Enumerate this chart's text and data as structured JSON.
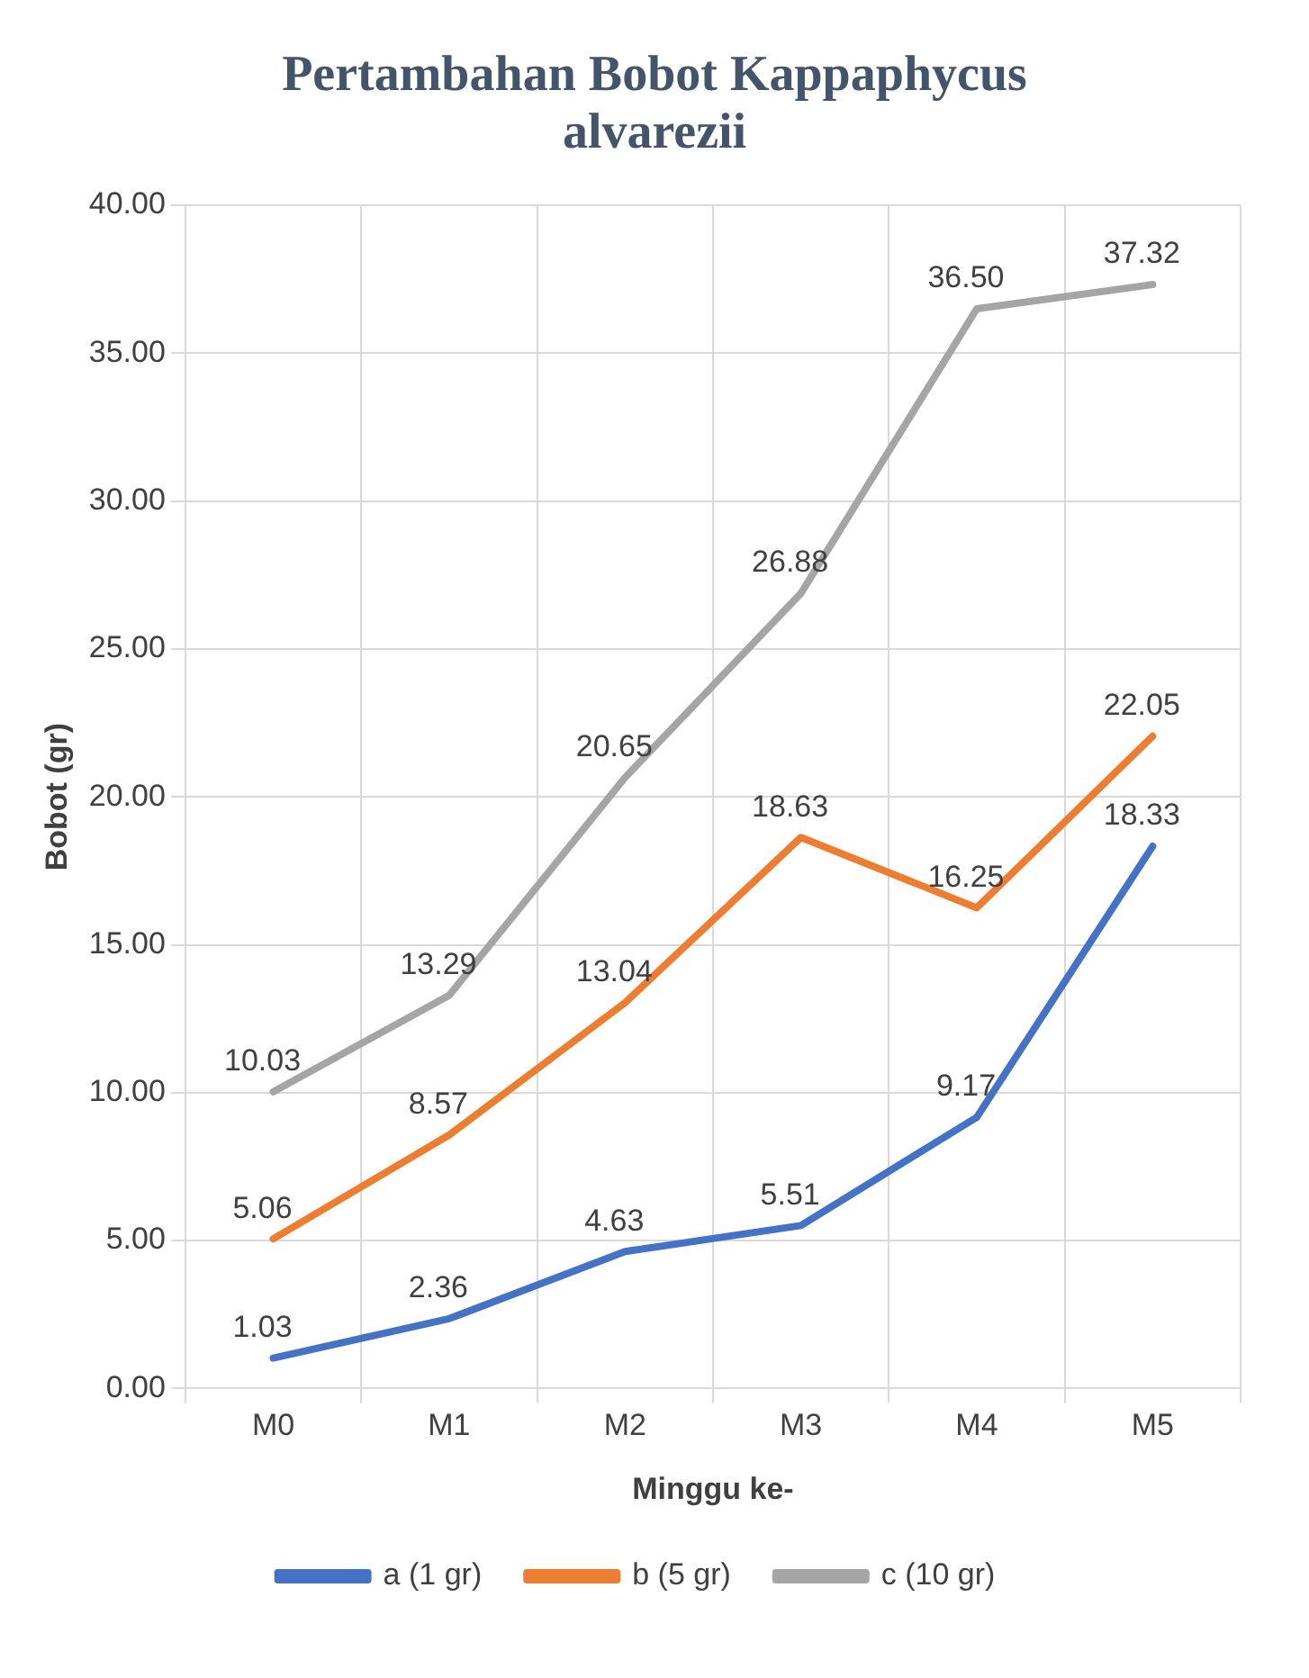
{
  "chart_data": {
    "type": "line",
    "title": "Pertambahan Bobot Kappaphycus alvarezii",
    "xlabel": "Minggu ke-",
    "ylabel": "Bobot (gr)",
    "categories": [
      "M0",
      "M1",
      "M2",
      "M3",
      "M4",
      "M5"
    ],
    "series": [
      {
        "name": "a (1 gr)",
        "color": "#4472c4",
        "values": [
          1.03,
          2.36,
          4.63,
          5.51,
          9.17,
          18.33
        ],
        "value_labels": [
          "1.03",
          "2.36",
          "4.63",
          "5.51",
          "9.17",
          "18.33"
        ]
      },
      {
        "name": "b (5 gr)",
        "color": "#ed7d31",
        "values": [
          5.06,
          8.57,
          13.04,
          18.63,
          16.25,
          22.05
        ],
        "value_labels": [
          "5.06",
          "8.57",
          "13.04",
          "18.63",
          "16.25",
          "22.05"
        ]
      },
      {
        "name": "c (10 gr)",
        "color": "#a5a5a5",
        "values": [
          10.03,
          13.29,
          20.65,
          26.88,
          36.5,
          37.32
        ],
        "value_labels": [
          "10.03",
          "13.29",
          "20.65",
          "26.88",
          "36.50",
          "37.32"
        ]
      }
    ],
    "ylim": [
      0,
      40
    ],
    "yticks": [
      {
        "value": 0,
        "label": "0.00"
      },
      {
        "value": 5,
        "label": "5.00"
      },
      {
        "value": 10,
        "label": "10.00"
      },
      {
        "value": 15,
        "label": "15.00"
      },
      {
        "value": 20,
        "label": "20.00"
      },
      {
        "value": 25,
        "label": "25.00"
      },
      {
        "value": 30,
        "label": "30.00"
      },
      {
        "value": 35,
        "label": "35.00"
      },
      {
        "value": 40,
        "label": "40.00"
      }
    ],
    "grid": true,
    "legend": "bottom",
    "marker": "none",
    "line_style": "solid"
  }
}
